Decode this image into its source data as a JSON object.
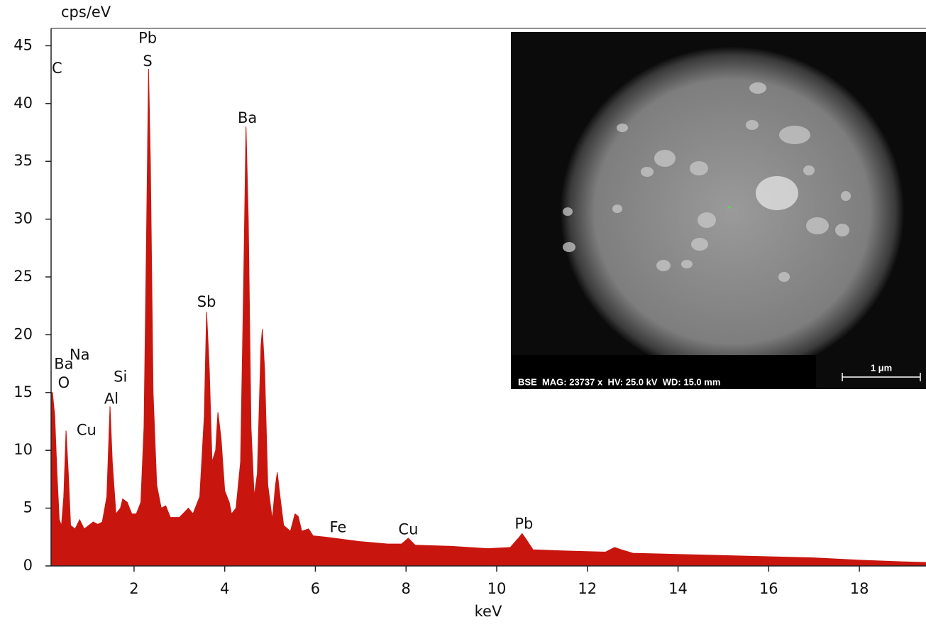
{
  "chart_data": {
    "type": "area",
    "y_axis_label": "cps/eV",
    "x_axis_label": "keV",
    "xlim": [
      0.17,
      19.47
    ],
    "ylim": [
      0,
      46.5
    ],
    "xticks": [
      2,
      4,
      6,
      8,
      10,
      12,
      14,
      16,
      18
    ],
    "yticks": [
      0,
      5,
      10,
      15,
      20,
      25,
      30,
      35,
      40,
      45
    ],
    "series": [
      {
        "color": "#c8160f",
        "x": [
          0.17,
          0.2,
          0.25,
          0.3,
          0.35,
          0.4,
          0.45,
          0.5,
          0.55,
          0.6,
          0.7,
          0.8,
          0.9,
          1.0,
          1.1,
          1.2,
          1.3,
          1.4,
          1.47,
          1.52,
          1.6,
          1.7,
          1.75,
          1.85,
          1.95,
          2.05,
          2.15,
          2.22,
          2.28,
          2.32,
          2.36,
          2.42,
          2.5,
          2.6,
          2.7,
          2.8,
          3.0,
          3.2,
          3.3,
          3.45,
          3.55,
          3.6,
          3.66,
          3.72,
          3.8,
          3.85,
          3.92,
          4.0,
          4.1,
          4.15,
          4.25,
          4.35,
          4.42,
          4.47,
          4.52,
          4.58,
          4.65,
          4.72,
          4.8,
          4.83,
          4.88,
          4.95,
          5.05,
          5.12,
          5.16,
          5.22,
          5.3,
          5.45,
          5.55,
          5.62,
          5.7,
          5.85,
          5.95,
          6.2,
          6.4,
          7.0,
          7.6,
          7.9,
          8.05,
          8.2,
          9.0,
          9.8,
          10.3,
          10.5,
          10.56,
          10.65,
          10.8,
          11.5,
          12.4,
          12.6,
          12.75,
          13.0,
          14.0,
          15.0,
          16.0,
          17.0,
          18.0,
          19.0,
          19.47
        ],
        "values": [
          15,
          15,
          13,
          8,
          4,
          3.5,
          6,
          11.7,
          8,
          3.5,
          3.2,
          4,
          3.2,
          3.5,
          3.8,
          3.6,
          3.8,
          6,
          13.8,
          9,
          4.5,
          5,
          5.8,
          5.5,
          4.5,
          4.5,
          5.5,
          12,
          30,
          43,
          35,
          15,
          7,
          5,
          5.2,
          4.2,
          4.2,
          5,
          4.5,
          6,
          13,
          22,
          17,
          9,
          10,
          13.3,
          11,
          6.5,
          5.5,
          4.5,
          5,
          9,
          25,
          38,
          30,
          12,
          6,
          8,
          19,
          20.5,
          17,
          7,
          4,
          7,
          8.1,
          6,
          3.5,
          3,
          4.5,
          4.3,
          3,
          3.2,
          2.6,
          2.5,
          2.4,
          2.1,
          1.9,
          1.9,
          2.4,
          1.8,
          1.7,
          1.5,
          1.6,
          2.5,
          2.8,
          2.3,
          1.4,
          1.3,
          1.2,
          1.6,
          1.4,
          1.1,
          1.0,
          0.9,
          0.8,
          0.7,
          0.5,
          0.35,
          0.3
        ]
      }
    ],
    "annotations": [
      {
        "text": "C",
        "x": 0.3,
        "y": 43
      },
      {
        "text": "Pb",
        "x": 2.3,
        "y": 45.6
      },
      {
        "text": "S",
        "x": 2.3,
        "y": 43.6
      },
      {
        "text": "Ba",
        "x": 4.5,
        "y": 38.7
      },
      {
        "text": "Sb",
        "x": 3.6,
        "y": 22.8
      },
      {
        "text": "Ba",
        "x": 0.45,
        "y": 17.4
      },
      {
        "text": "Na",
        "x": 0.8,
        "y": 18.2
      },
      {
        "text": "O",
        "x": 0.45,
        "y": 15.8
      },
      {
        "text": "Si",
        "x": 1.7,
        "y": 16.3
      },
      {
        "text": "Al",
        "x": 1.5,
        "y": 14.4
      },
      {
        "text": "Cu",
        "x": 0.95,
        "y": 11.7
      },
      {
        "text": "Fe",
        "x": 6.5,
        "y": 3.3
      },
      {
        "text": "Cu",
        "x": 8.05,
        "y": 3.1
      },
      {
        "text": "Pb",
        "x": 10.6,
        "y": 3.6
      }
    ],
    "inset": {
      "caption": "BSE  MAG: 23737 x  HV: 25.0 kV  WD: 15.0 mm",
      "scale_bar": "1 μm"
    }
  }
}
